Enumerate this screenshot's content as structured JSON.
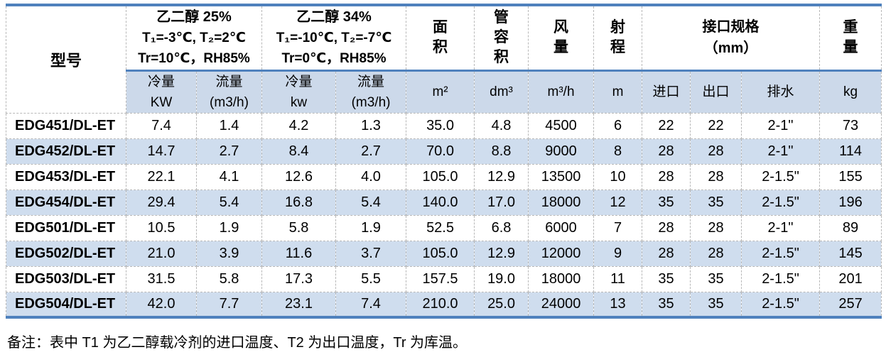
{
  "colors": {
    "accent_blue": "#4f81bd",
    "subheader_fill": "#ccd9ea",
    "stripe_fill": "#cfddee",
    "gridline": "#b8b8b8"
  },
  "table": {
    "header": {
      "model": "型号",
      "glycol25": {
        "title": "乙二醇 25%",
        "temps": "T₁=-3℃, T₂=2℃",
        "cond": "Tr=10℃，RH85%"
      },
      "glycol34": {
        "title": "乙二醇 34%",
        "temps": "T₁=-10℃, T₂=-7℃",
        "cond": "Tr=0℃，RH85%"
      },
      "area": "面\n积",
      "tube_volume": "管\n容\n积",
      "air_flow": "风\n量",
      "throw": "射\n程",
      "connection": "接口规格\n（mm）",
      "weight": "重\n量"
    },
    "subheader": {
      "cooling25": "冷量\nKW",
      "flow25": "流量\n(m3/h)",
      "cooling34": "冷量\nkw",
      "flow34": "流量\n(m3/h)",
      "area_unit": "m²",
      "tube_unit": "dm³",
      "air_unit": "m³/h",
      "throw_unit": "m",
      "inlet": "进口",
      "outlet": "出口",
      "drain": "排水",
      "weight_unit": "kg"
    },
    "rows": [
      {
        "model": "EDG451/DL-ET",
        "values": [
          "7.4",
          "1.4",
          "4.2",
          "1.3",
          "35.0",
          "4.8",
          "4500",
          "6",
          "22",
          "22",
          "2-1\"",
          "73"
        ]
      },
      {
        "model": "EDG452/DL-ET",
        "values": [
          "14.7",
          "2.7",
          "8.4",
          "2.7",
          "70.0",
          "8.8",
          "9000",
          "8",
          "28",
          "28",
          "2-1\"",
          "114"
        ]
      },
      {
        "model": "EDG453/DL-ET",
        "values": [
          "22.1",
          "4.1",
          "12.6",
          "4.0",
          "105.0",
          "12.9",
          "13500",
          "10",
          "28",
          "28",
          "2-1.5\"",
          "155"
        ]
      },
      {
        "model": "EDG454/DL-ET",
        "values": [
          "29.4",
          "5.4",
          "16.8",
          "5.4",
          "140.0",
          "17.0",
          "18000",
          "12",
          "35",
          "35",
          "2-1.5\"",
          "196"
        ]
      },
      {
        "model": "EDG501/DL-ET",
        "values": [
          "10.5",
          "1.9",
          "5.8",
          "1.9",
          "52.5",
          "6.8",
          "6000",
          "7",
          "28",
          "28",
          "2-1\"",
          "89"
        ]
      },
      {
        "model": "EDG502/DL-ET",
        "values": [
          "21.0",
          "3.9",
          "11.6",
          "3.7",
          "105.0",
          "12.9",
          "12000",
          "9",
          "28",
          "28",
          "2-1.5\"",
          "145"
        ]
      },
      {
        "model": "EDG503/DL-ET",
        "values": [
          "31.5",
          "5.8",
          "17.3",
          "5.5",
          "157.5",
          "19.0",
          "18000",
          "11",
          "35",
          "35",
          "2-1.5\"",
          "201"
        ]
      },
      {
        "model": "EDG504/DL-ET",
        "values": [
          "42.0",
          "7.7",
          "23.1",
          "7.4",
          "210.0",
          "25.0",
          "24000",
          "13",
          "35",
          "35",
          "2-1.5\"",
          "257"
        ]
      }
    ],
    "note": "备注：表中 T1 为乙二醇载冷剂的进口温度、T2 为出口温度，Tr 为库温。"
  }
}
